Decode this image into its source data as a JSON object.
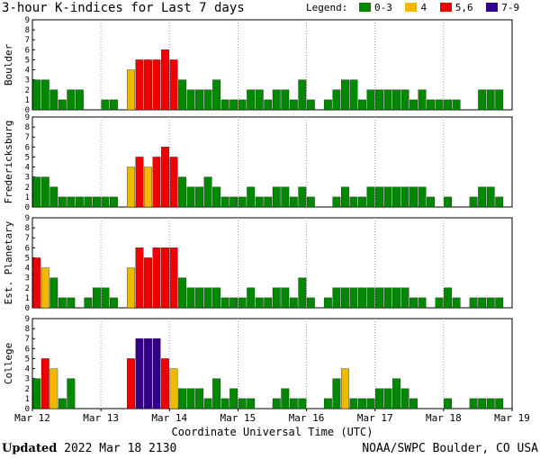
{
  "title": "3-hour K-indices for Last 7 days",
  "legend": {
    "label": "Legend:",
    "items": [
      {
        "label": "0-3",
        "color": "#008800"
      },
      {
        "label": "4",
        "color": "#f0b800"
      },
      {
        "label": "5,6",
        "color": "#ee0000"
      },
      {
        "label": "7-9",
        "color": "#330088"
      }
    ]
  },
  "footer": {
    "updated_label": "Updated",
    "updated_value": "2022 Mar 18 2130",
    "source": "NOAA/SWPC Boulder, CO USA"
  },
  "chart_data": {
    "type": "bar",
    "xlabel": "Coordinate Universal Time (UTC)",
    "x_tick_labels": [
      "Mar 12",
      "Mar 13",
      "Mar 14",
      "Mar 15",
      "Mar 16",
      "Mar 17",
      "Mar 18",
      "Mar 19"
    ],
    "y_tick_labels": [
      "0",
      "1",
      "2",
      "3",
      "4",
      "5",
      "6",
      "7",
      "8",
      "9"
    ],
    "ylim": [
      0,
      9
    ],
    "bars_per_day": 8,
    "panels": [
      {
        "label": "Boulder",
        "values": [
          3,
          3,
          2,
          1,
          2,
          2,
          0,
          0,
          1,
          1,
          0,
          4,
          5,
          5,
          5,
          6,
          5,
          3,
          2,
          2,
          2,
          3,
          1,
          1,
          1,
          2,
          2,
          1,
          2,
          2,
          1,
          3,
          1,
          0,
          1,
          2,
          3,
          3,
          1,
          2,
          2,
          2,
          2,
          2,
          1,
          2,
          1,
          1,
          1,
          1,
          0,
          0,
          2,
          2,
          2,
          0
        ]
      },
      {
        "label": "Fredericksburg",
        "values": [
          3,
          3,
          2,
          1,
          1,
          1,
          1,
          1,
          1,
          1,
          0,
          4,
          5,
          4,
          5,
          6,
          5,
          3,
          2,
          2,
          3,
          2,
          1,
          1,
          1,
          2,
          1,
          1,
          2,
          2,
          1,
          2,
          1,
          0,
          0,
          1,
          2,
          1,
          1,
          2,
          2,
          2,
          2,
          2,
          2,
          2,
          1,
          0,
          1,
          0,
          0,
          1,
          2,
          2,
          1,
          0
        ]
      },
      {
        "label": "Est. Planetary",
        "values": [
          5,
          4,
          3,
          1,
          1,
          0,
          1,
          2,
          2,
          1,
          0,
          4,
          6,
          5,
          6,
          6,
          6,
          3,
          2,
          2,
          2,
          2,
          1,
          1,
          1,
          2,
          1,
          1,
          2,
          2,
          1,
          3,
          1,
          0,
          1,
          2,
          2,
          2,
          2,
          2,
          2,
          2,
          2,
          2,
          1,
          1,
          0,
          1,
          2,
          1,
          0,
          1,
          1,
          1,
          1,
          0
        ]
      },
      {
        "label": "College",
        "values": [
          3,
          5,
          4,
          1,
          3,
          0,
          0,
          0,
          0,
          0,
          0,
          5,
          7,
          7,
          7,
          5,
          4,
          2,
          2,
          2,
          1,
          3,
          1,
          2,
          1,
          1,
          0,
          0,
          1,
          2,
          1,
          1,
          0,
          0,
          1,
          3,
          4,
          1,
          1,
          1,
          2,
          2,
          3,
          2,
          1,
          0,
          0,
          0,
          1,
          0,
          0,
          1,
          1,
          1,
          1,
          0
        ]
      }
    ]
  }
}
